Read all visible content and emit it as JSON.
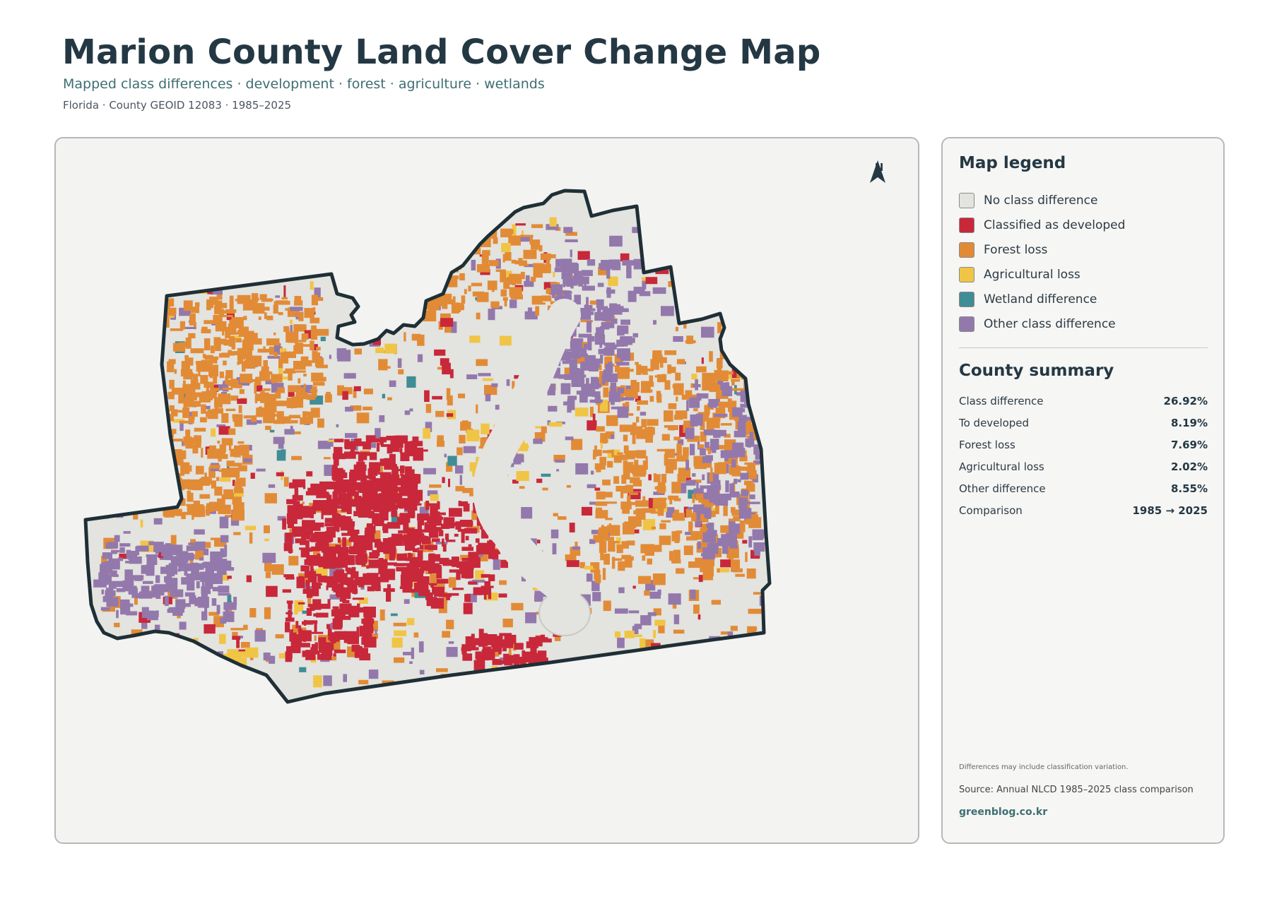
{
  "header": {
    "title": "Marion County Land Cover Change Map",
    "subtitle": "Mapped class differences · development · forest · agriculture · wetlands",
    "meta": "Florida · County GEOID 12083 · 1985–2025"
  },
  "map": {
    "north_label": "N",
    "boundary_color": "#1f2f36",
    "base_color": "#e3e3df"
  },
  "legend": {
    "title": "Map legend",
    "items": [
      {
        "label": "No class difference",
        "color": "#e3e3df"
      },
      {
        "label": "Classified as developed",
        "color": "#c8283a"
      },
      {
        "label": "Forest loss",
        "color": "#e28b36"
      },
      {
        "label": "Agricultural loss",
        "color": "#f0c545"
      },
      {
        "label": "Wetland difference",
        "color": "#3f8d95"
      },
      {
        "label": "Other class difference",
        "color": "#9378ac"
      }
    ]
  },
  "summary": {
    "title": "County summary",
    "rows": [
      {
        "label": "Class difference",
        "value": "26.92%"
      },
      {
        "label": "To developed",
        "value": "8.19%"
      },
      {
        "label": "Forest loss",
        "value": "7.69%"
      },
      {
        "label": "Agricultural loss",
        "value": "2.02%"
      },
      {
        "label": "Other difference",
        "value": "8.55%"
      },
      {
        "label": "Comparison",
        "value": "1985 → 2025"
      }
    ]
  },
  "footer": {
    "note": "Differences may include classification variation.",
    "source": "Source: Annual NLCD 1985–2025 class comparison",
    "brand": "greenblog.co.kr"
  }
}
